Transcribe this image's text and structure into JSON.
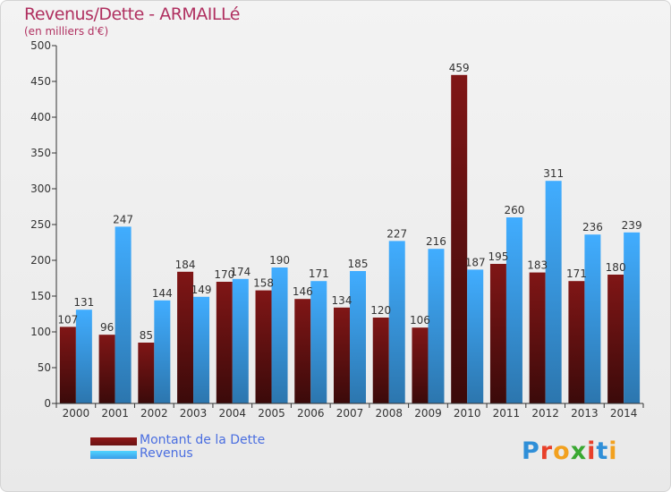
{
  "header": {
    "title": "Revenus/Dette - ARMAILLé",
    "subtitle": "(en milliers d'€)"
  },
  "legend": {
    "items": [
      {
        "label": "Montant de la Dette",
        "color": "#6b1212"
      },
      {
        "label": "Revenus",
        "color": "#3b9de8"
      }
    ]
  },
  "logo": {
    "letters": [
      {
        "char": "P",
        "color": "#2f8fd8"
      },
      {
        "char": "r",
        "color": "#e8402a"
      },
      {
        "char": "o",
        "color": "#f2a11f"
      },
      {
        "char": "x",
        "color": "#3aa832"
      },
      {
        "char": "i",
        "color": "#e8402a"
      },
      {
        "char": "t",
        "color": "#2f8fd8"
      },
      {
        "char": "i",
        "color": "#f2a11f"
      }
    ]
  },
  "chart_data": {
    "type": "bar",
    "categories": [
      "2000",
      "2001",
      "2002",
      "2003",
      "2004",
      "2005",
      "2006",
      "2007",
      "2008",
      "2009",
      "2010",
      "2011",
      "2012",
      "2013",
      "2014"
    ],
    "series": [
      {
        "name": "Montant de la Dette",
        "color": "#6b1212",
        "values": [
          107,
          96,
          85,
          184,
          170,
          158,
          146,
          134,
          120,
          106,
          459,
          195,
          183,
          171,
          180
        ],
        "labels": [
          "107",
          "96",
          "85",
          "184",
          "170",
          "158",
          "146",
          "134",
          "120",
          "106",
          "459",
          "195",
          "183",
          "171",
          "180"
        ]
      },
      {
        "name": "Revenus",
        "color": "#3b9de8",
        "values": [
          131,
          247,
          144,
          149,
          174,
          190,
          171,
          185,
          227,
          216,
          187,
          260,
          311,
          236,
          239
        ],
        "labels": [
          "131",
          "247",
          "144",
          "149",
          "174",
          "190",
          "171",
          "185",
          "227",
          "216",
          "187",
          "260",
          "311",
          "236",
          "239"
        ]
      }
    ],
    "yticks": [
      "0",
      "50",
      "100",
      "150",
      "200",
      "250",
      "300",
      "350",
      "400",
      "450",
      "500"
    ],
    "ylim": [
      0,
      500
    ],
    "grid": false,
    "legend_position": "bottom-left"
  }
}
